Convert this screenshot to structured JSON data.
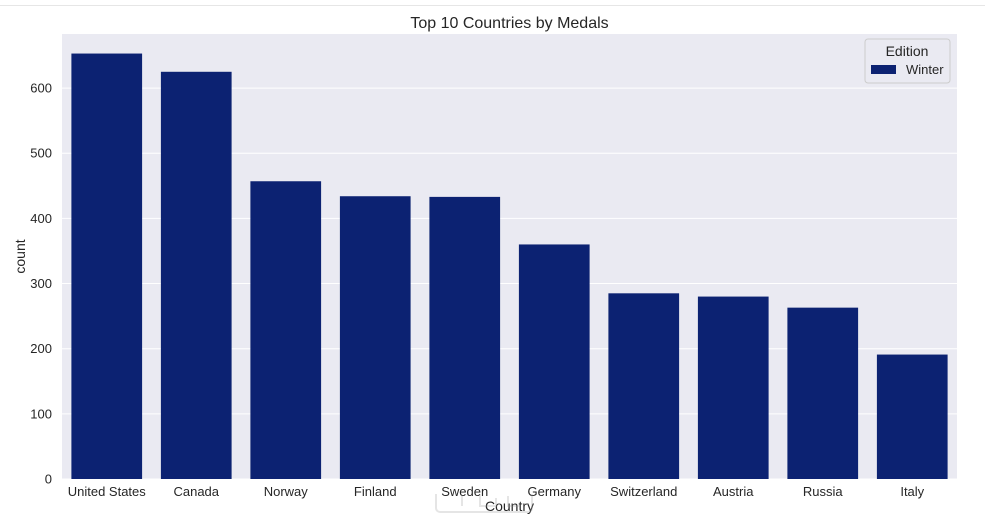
{
  "chart_data": {
    "type": "bar",
    "title": "Top 10 Countries by Medals",
    "xlabel": "Country",
    "ylabel": "count",
    "categories": [
      "United States",
      "Canada",
      "Norway",
      "Finland",
      "Sweden",
      "Germany",
      "Switzerland",
      "Austria",
      "Russia",
      "Italy"
    ],
    "series": [
      {
        "name": "Winter",
        "values": [
          653,
          625,
          457,
          434,
          433,
          360,
          285,
          280,
          263,
          191
        ]
      }
    ],
    "ylim": [
      0,
      683
    ],
    "yticks": [
      0,
      100,
      200,
      300,
      400,
      500,
      600
    ],
    "grid": true,
    "legend": {
      "title": "Edition",
      "position": "top-right"
    },
    "colors": {
      "bar": "#0c2272",
      "plot_bg": "#eaeaf2",
      "grid": "#ffffff"
    }
  }
}
